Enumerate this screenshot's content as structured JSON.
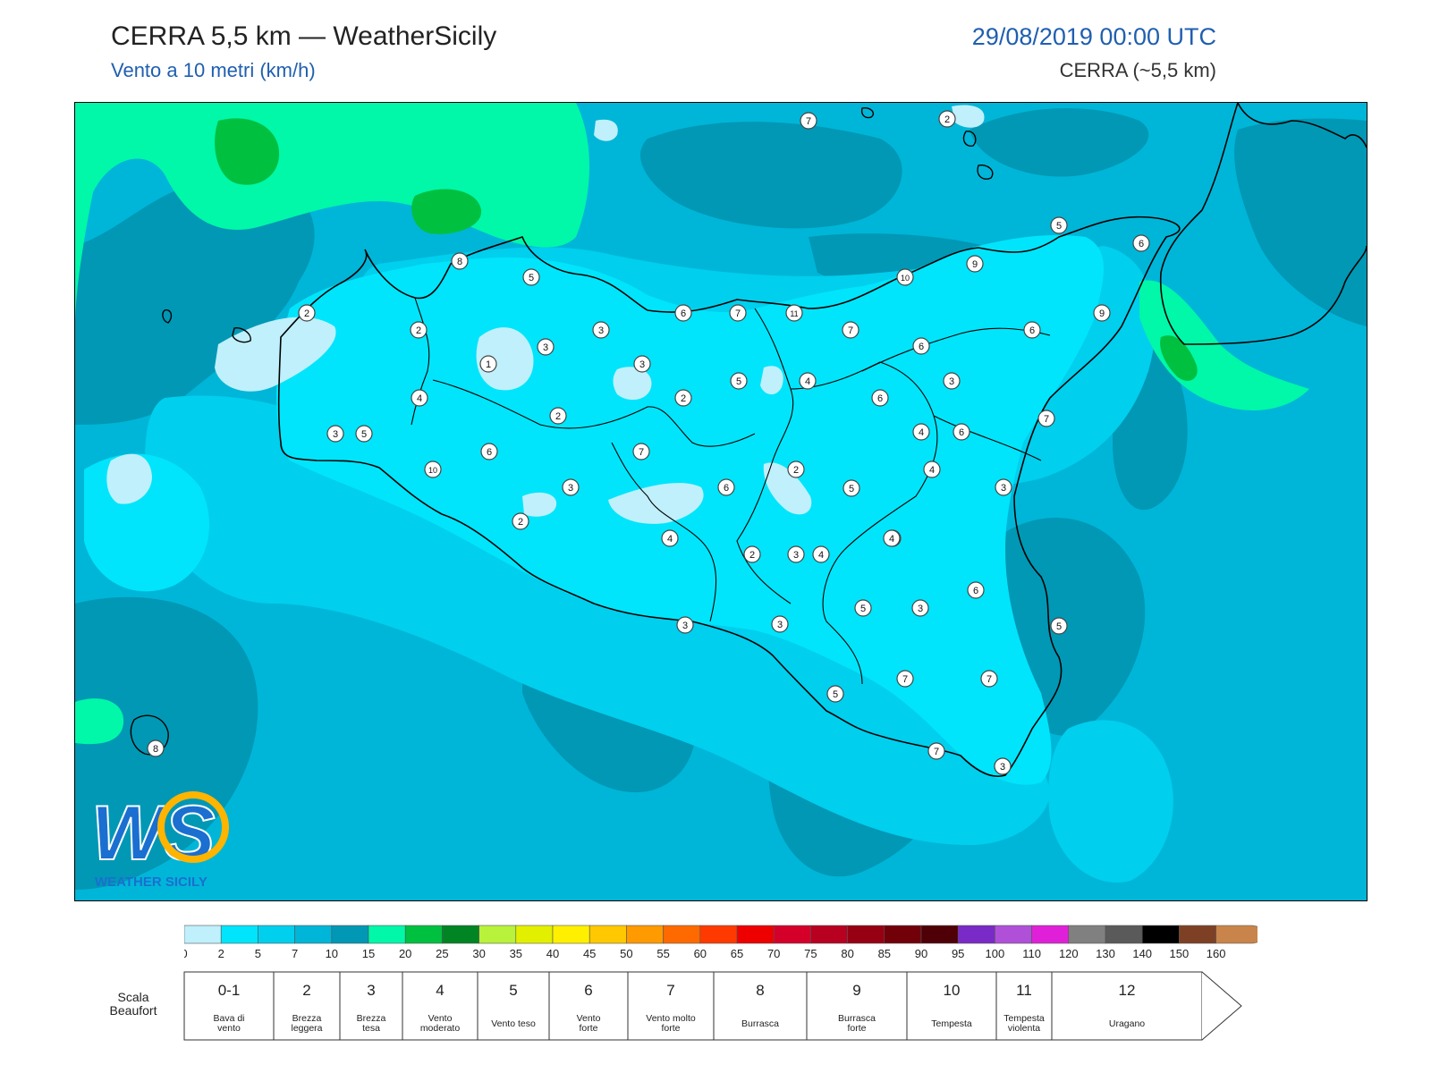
{
  "header": {
    "title": "CERRA 5,5 km — WeatherSicily",
    "subtitle": "Vento a 10 metri (km/h)",
    "datetime": "29/08/2019 00:00 UTC",
    "model": "CERRA (~5,5 km)"
  },
  "logo": {
    "letters": "WS",
    "caption": "WEATHER SICILY"
  },
  "colors": {
    "c0_2": "#bff0fb",
    "c2_5": "#00e5fb",
    "c5_7": "#00cfee",
    "c7_10": "#00b6d8",
    "c10_15": "#0098b5",
    "c15_20": "#00f8a8",
    "c20_25": "#00c040",
    "c25_30": "#008424",
    "land_border": "#000000"
  },
  "colorbar": {
    "ticks": [
      "0",
      "2",
      "5",
      "7",
      "10",
      "15",
      "20",
      "25",
      "30",
      "35",
      "40",
      "45",
      "50",
      "55",
      "60",
      "65",
      "70",
      "75",
      "80",
      "85",
      "90",
      "95",
      "100",
      "110",
      "120",
      "130",
      "140",
      "150",
      "160"
    ],
    "bins": [
      "#bff0fb",
      "#00e5fb",
      "#00cfee",
      "#00b6d8",
      "#0098b5",
      "#00f8a8",
      "#00c040",
      "#008424",
      "#b8f23a",
      "#e2f000",
      "#fff000",
      "#ffc800",
      "#ff9a00",
      "#ff6a00",
      "#ff3a00",
      "#ee0000",
      "#d4002a",
      "#b80020",
      "#960012",
      "#720008",
      "#4e0006",
      "#7a2ac6",
      "#b050d8",
      "#e020d8",
      "#808080",
      "#5a5a5a",
      "#000000",
      "#7e4024",
      "#c8844a"
    ]
  },
  "beaufort": {
    "label": "Scala Beaufort",
    "classes": [
      {
        "num": "0-1",
        "name": "Bava di vento"
      },
      {
        "num": "2",
        "name": "Brezza leggera"
      },
      {
        "num": "3",
        "name": "Brezza tesa"
      },
      {
        "num": "4",
        "name": "Vento moderato"
      },
      {
        "num": "5",
        "name": "Vento teso"
      },
      {
        "num": "6",
        "name": "Vento forte"
      },
      {
        "num": "7",
        "name": "Vento molto forte"
      },
      {
        "num": "8",
        "name": "Burrasca"
      },
      {
        "num": "9",
        "name": "Burrasca forte"
      },
      {
        "num": "10",
        "name": "Tempesta"
      },
      {
        "num": "11",
        "name": "Tempesta violenta"
      },
      {
        "num": "12",
        "name": "Uragano"
      }
    ]
  },
  "station_labels": [
    "7",
    "2",
    "5",
    "6",
    "9",
    "10",
    "8",
    "5",
    "6",
    "7",
    "11",
    "7",
    "6",
    "6",
    "9",
    "2",
    "2",
    "3",
    "3",
    "1",
    "3",
    "5",
    "4",
    "2",
    "2",
    "3",
    "4",
    "6",
    "5",
    "4",
    "6",
    "7",
    "10",
    "3",
    "6",
    "7",
    "6",
    "2",
    "3",
    "2",
    "3",
    "5",
    "4",
    "4",
    "3",
    "4",
    "3",
    "2",
    "4",
    "4",
    "6",
    "5",
    "3",
    "7",
    "5",
    "3",
    "7",
    "5",
    "3",
    "7",
    "3",
    "8"
  ]
}
